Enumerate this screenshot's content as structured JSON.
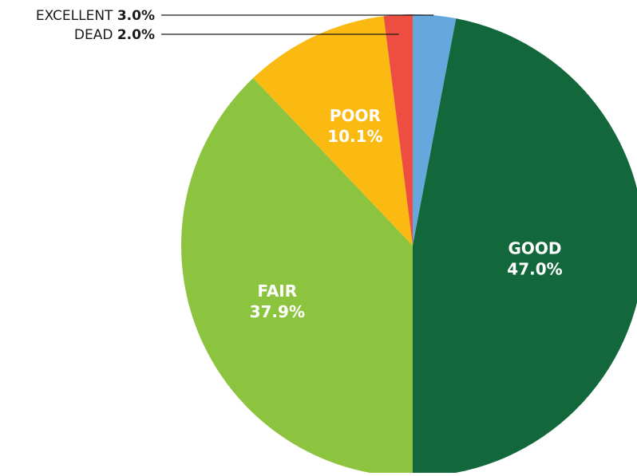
{
  "chart_data": {
    "type": "pie",
    "title": "",
    "start_angle_deg": 0,
    "direction": "clockwise",
    "slices": [
      {
        "label": "EXCELLENT",
        "value": 3.0,
        "display": "3.0%",
        "color": "#64a8dd",
        "label_style": "callout"
      },
      {
        "label": "GOOD",
        "value": 47.0,
        "display": "47.0%",
        "color": "#12683a",
        "label_style": "inside"
      },
      {
        "label": "FAIR",
        "value": 37.9,
        "display": "37.9%",
        "color": "#8cc43f",
        "label_style": "inside"
      },
      {
        "label": "POOR",
        "value": 10.1,
        "display": "10.1%",
        "color": "#fbba12",
        "label_style": "inside"
      },
      {
        "label": "DEAD",
        "value": 2.0,
        "display": "2.0%",
        "color": "#ee4e42",
        "label_style": "callout"
      }
    ],
    "legend": "none"
  }
}
